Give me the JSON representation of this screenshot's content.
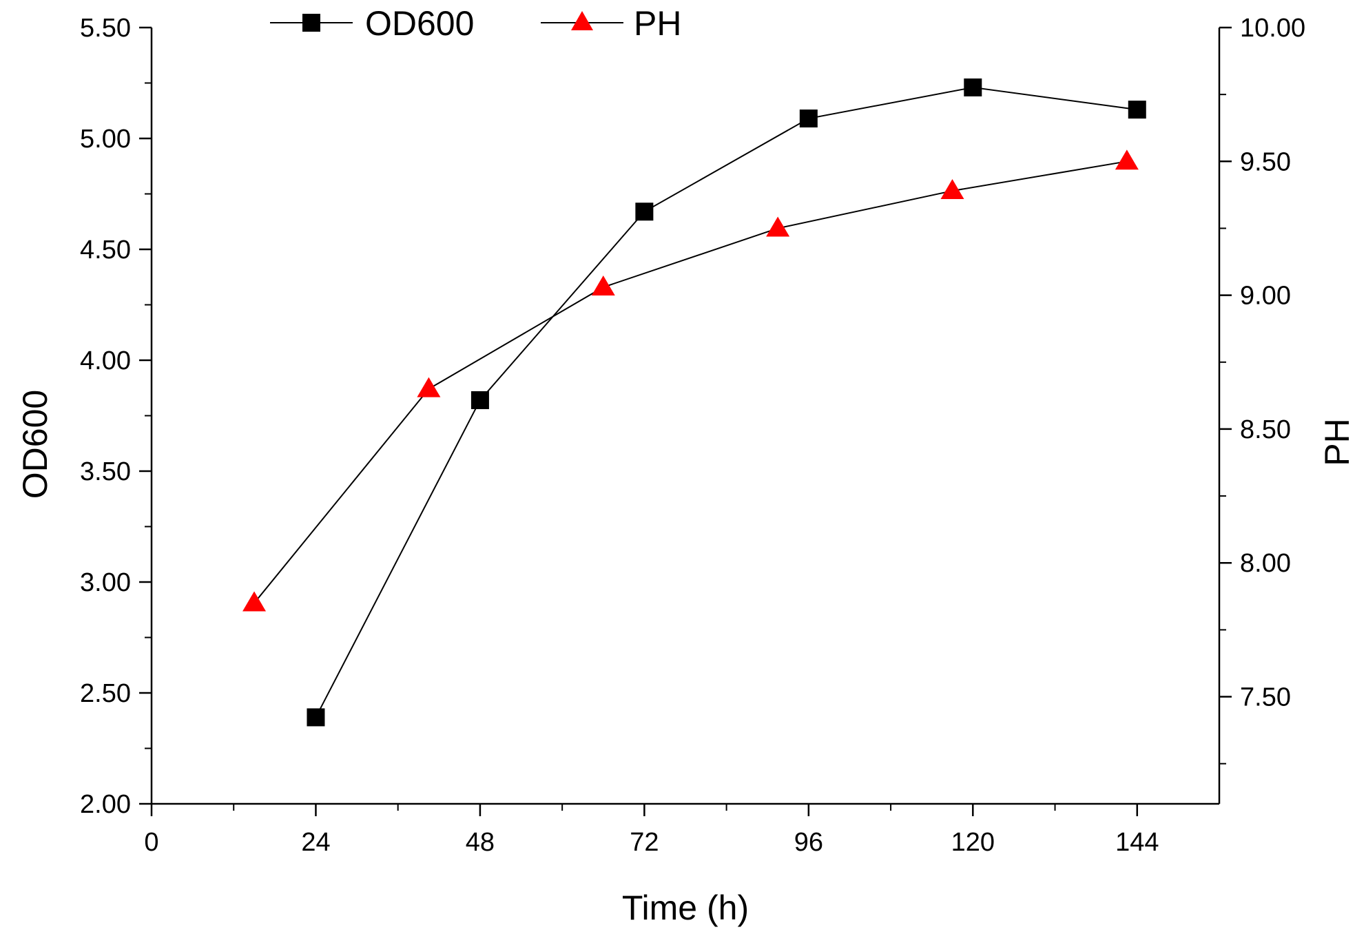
{
  "chart_data": {
    "type": "line",
    "title": "",
    "xlabel": "Time (h)",
    "ylabel_left": "OD600",
    "ylabel_right": "PH",
    "xlim": [
      0,
      156
    ],
    "x_ticks": [
      0,
      24,
      48,
      72,
      96,
      120,
      144
    ],
    "x_tick_labels": [
      "0",
      "24",
      "48",
      "72",
      "96",
      "120",
      "144"
    ],
    "ylim_left": [
      2.0,
      5.5
    ],
    "y_left_ticks": [
      2.0,
      2.5,
      3.0,
      3.5,
      4.0,
      4.5,
      5.0,
      5.5
    ],
    "y_left_tick_labels": [
      "2.00",
      "2.50",
      "3.00",
      "3.50",
      "4.00",
      "4.50",
      "5.00",
      "5.50"
    ],
    "ylim_right": [
      7.1,
      10.0
    ],
    "y_right_ticks": [
      7.5,
      8.0,
      8.5,
      9.0,
      9.5,
      10.0
    ],
    "y_right_tick_labels": [
      "7.50",
      "8.00",
      "8.50",
      "9.00",
      "9.50",
      "10.00"
    ],
    "grid": false,
    "legend_position": "top-left",
    "series": [
      {
        "name": "OD600",
        "axis": "left",
        "marker": "square",
        "color": "#000000",
        "x": [
          24,
          48,
          72,
          96,
          120,
          144
        ],
        "values": [
          2.39,
          3.82,
          4.67,
          5.09,
          5.23,
          5.13
        ]
      },
      {
        "name": "PH",
        "axis": "right",
        "marker": "triangle",
        "color": "#ff0000",
        "x": [
          15,
          40.5,
          66,
          91.5,
          117,
          142.5
        ],
        "values": [
          7.85,
          8.65,
          9.03,
          9.25,
          9.39,
          9.5
        ]
      }
    ]
  }
}
